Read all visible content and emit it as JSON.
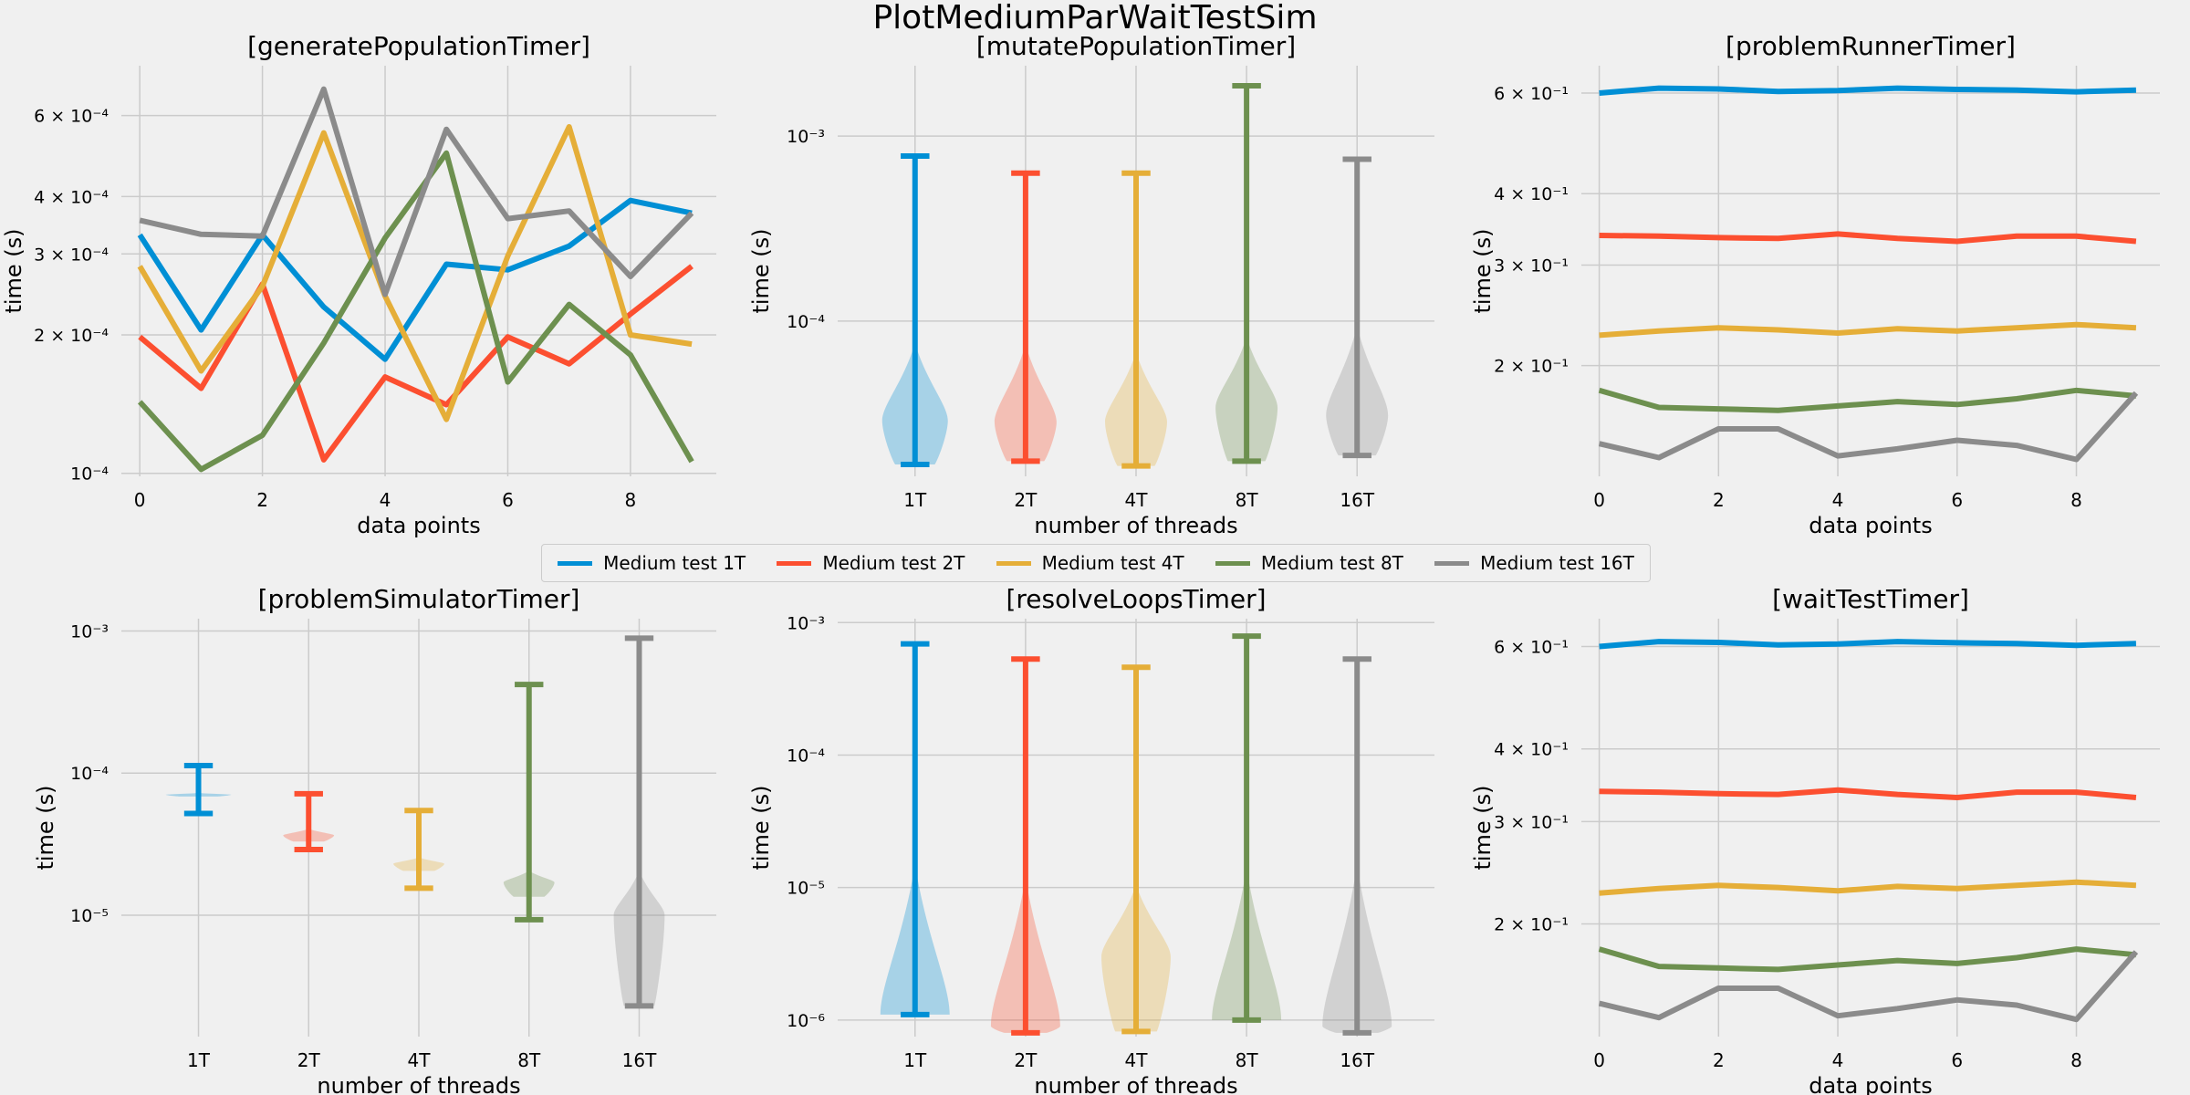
{
  "suptitle": "PlotMediumParWaitTestSim",
  "colors": [
    "#008fd5",
    "#fc4f30",
    "#e5ae38",
    "#6d904f",
    "#8b8b8b"
  ],
  "legend": [
    "Medium test 1T",
    "Medium test 2T",
    "Medium test 4T",
    "Medium test 8T",
    "Medium test 16T"
  ],
  "chart_data": [
    {
      "id": "generate",
      "type": "line",
      "title": "[generatePopulationTimer]",
      "xlabel": "data points",
      "ylabel": "time (s)",
      "yscale": "log",
      "xlim": [
        -0.3,
        9.4
      ],
      "ylim": [
        9.85e-05,
        0.00077
      ],
      "xticks": [
        0,
        2,
        4,
        6,
        8
      ],
      "xticklabels": [
        "0",
        "2",
        "4",
        "6",
        "8"
      ],
      "yticks": [
        0.0001,
        0.0002,
        0.0003,
        0.0004,
        0.0006
      ],
      "yticklabels": [
        "10⁻⁴",
        "2 × 10⁻⁴",
        "3 × 10⁻⁴",
        "4 × 10⁻⁴",
        "6 × 10⁻⁴"
      ],
      "x": [
        0,
        1,
        2,
        3,
        4,
        5,
        6,
        7,
        8,
        9
      ],
      "series": [
        {
          "name": "Medium test 1T",
          "values": [
            0.00033,
            0.000205,
            0.00033,
            0.00023,
            0.000177,
            0.000285,
            0.000277,
            0.000312,
            0.000392,
            0.000368
          ]
        },
        {
          "name": "Medium test 2T",
          "values": [
            0.000198,
            0.000153,
            0.000258,
            0.000107,
            0.000162,
            0.000141,
            0.000198,
            0.000173,
            0.000222,
            0.000282
          ]
        },
        {
          "name": "Medium test 4T",
          "values": [
            0.000282,
            0.000167,
            0.000255,
            0.00055,
            0.000243,
            0.000131,
            0.000297,
            0.000567,
            0.0002,
            0.000191
          ]
        },
        {
          "name": "Medium test 8T",
          "values": [
            0.000143,
            0.000102,
            0.000121,
            0.000192,
            0.000325,
            0.000497,
            0.000158,
            0.000233,
            0.000181,
            0.000106
          ]
        },
        {
          "name": "Medium test 16T",
          "values": [
            0.000355,
            0.000331,
            0.000328,
            0.000685,
            0.000245,
            0.00056,
            0.000358,
            0.000372,
            0.000268,
            0.000368
          ]
        }
      ]
    },
    {
      "id": "mutate",
      "type": "violin",
      "title": "[mutatePopulationTimer]",
      "xlabel": "number of threads",
      "ylabel": "time (s)",
      "yscale": "log",
      "ylim": [
        1.45e-05,
        0.0024
      ],
      "yticks": [
        0.0001,
        0.001
      ],
      "yticklabels": [
        "10⁻⁴",
        "10⁻³"
      ],
      "categories": [
        "1T",
        "2T",
        "4T",
        "8T",
        "16T"
      ],
      "violins": [
        {
          "min": 1.68e-05,
          "max": 0.00078,
          "peak": 2.9e-05,
          "width": 0.9,
          "upper": 7.6e-05,
          "lower": 1.68e-05
        },
        {
          "min": 1.75e-05,
          "max": 0.00063,
          "peak": 2.85e-05,
          "width": 0.85,
          "upper": 7.5e-05,
          "lower": 1.75e-05
        },
        {
          "min": 1.65e-05,
          "max": 0.00063,
          "peak": 2.85e-05,
          "width": 0.85,
          "upper": 6.8e-05,
          "lower": 1.65e-05
        },
        {
          "min": 1.75e-05,
          "max": 0.00187,
          "peak": 3.4e-05,
          "width": 0.85,
          "upper": 8.2e-05,
          "lower": 1.75e-05
        },
        {
          "min": 1.88e-05,
          "max": 0.00075,
          "peak": 3.1e-05,
          "width": 0.85,
          "upper": 9.4e-05,
          "lower": 1.88e-05
        }
      ]
    },
    {
      "id": "runner",
      "type": "line",
      "title": "[problemRunnerTimer]",
      "xlabel": "data points",
      "ylabel": "time (s)",
      "yscale": "log",
      "xlim": [
        -0.3,
        9.4
      ],
      "ylim": [
        0.128,
        0.67
      ],
      "xticks": [
        0,
        2,
        4,
        6,
        8
      ],
      "xticklabels": [
        "0",
        "2",
        "4",
        "6",
        "8"
      ],
      "yticks": [
        0.2,
        0.3,
        0.4,
        0.6
      ],
      "yticklabels": [
        "2 × 10⁻¹",
        "3 × 10⁻¹",
        "4 × 10⁻¹",
        "6 × 10⁻¹"
      ],
      "x": [
        0,
        1,
        2,
        3,
        4,
        5,
        6,
        7,
        8,
        9
      ],
      "series": [
        {
          "name": "Medium test 1T",
          "values": [
            0.6,
            0.612,
            0.61,
            0.604,
            0.606,
            0.612,
            0.609,
            0.607,
            0.603,
            0.607
          ]
        },
        {
          "name": "Medium test 2T",
          "values": [
            0.338,
            0.337,
            0.335,
            0.334,
            0.34,
            0.334,
            0.33,
            0.337,
            0.337,
            0.33
          ]
        },
        {
          "name": "Medium test 4T",
          "values": [
            0.226,
            0.23,
            0.233,
            0.231,
            0.228,
            0.232,
            0.23,
            0.233,
            0.236,
            0.233
          ]
        },
        {
          "name": "Medium test 8T",
          "values": [
            0.181,
            0.169,
            0.168,
            0.167,
            0.17,
            0.173,
            0.171,
            0.175,
            0.181,
            0.177
          ]
        },
        {
          "name": "Medium test 16T",
          "values": [
            0.146,
            0.138,
            0.155,
            0.155,
            0.139,
            0.143,
            0.148,
            0.145,
            0.137,
            0.179
          ]
        }
      ]
    },
    {
      "id": "simulator",
      "type": "violin",
      "title": "[problemSimulatorTimer]",
      "xlabel": "number of threads",
      "ylabel": "time (s)",
      "yscale": "log",
      "ylim": [
        1.4e-06,
        0.00122
      ],
      "yticks": [
        1e-05,
        0.0001,
        0.001
      ],
      "yticklabels": [
        "10⁻⁵",
        "10⁻⁴",
        "10⁻³"
      ],
      "categories": [
        "1T",
        "2T",
        "4T",
        "8T",
        "16T"
      ],
      "violins": [
        {
          "min": 5.2e-05,
          "max": 0.000113,
          "peak": 7.05e-05,
          "width": 0.9,
          "upper": 7.25e-05,
          "lower": 6.85e-05
        },
        {
          "min": 2.9e-05,
          "max": 7.15e-05,
          "peak": 3.65e-05,
          "width": 0.7,
          "upper": 4.05e-05,
          "lower": 3.3e-05
        },
        {
          "min": 1.55e-05,
          "max": 5.45e-05,
          "peak": 2.3e-05,
          "width": 0.7,
          "upper": 2.55e-05,
          "lower": 2.05e-05
        },
        {
          "min": 9.3e-06,
          "max": 0.00042,
          "peak": 1.7e-05,
          "width": 0.7,
          "upper": 2.05e-05,
          "lower": 1.35e-05
        },
        {
          "min": 2.3e-06,
          "max": 0.00089,
          "peak": 1e-05,
          "width": 0.7,
          "upper": 2.05e-05,
          "lower": 2.3e-06
        }
      ]
    },
    {
      "id": "resolve",
      "type": "violin",
      "title": "[resolveLoopsTimer]",
      "xlabel": "number of threads",
      "ylabel": "time (s)",
      "yscale": "log",
      "ylim": [
        7.5e-07,
        0.00107
      ],
      "yticks": [
        1e-06,
        1e-05,
        0.0001,
        0.001
      ],
      "yticklabels": [
        "10⁻⁶",
        "10⁻⁵",
        "10⁻⁴",
        "10⁻³"
      ],
      "categories": [
        "1T",
        "2T",
        "4T",
        "8T",
        "16T"
      ],
      "violins": [
        {
          "min": 1.1e-06,
          "max": 0.00069,
          "peak": 1.1e-06,
          "width": 0.95,
          "upper": 1.5e-05,
          "lower": 1.1e-06
        },
        {
          "min": 8e-07,
          "max": 0.00053,
          "peak": 9e-07,
          "width": 0.95,
          "upper": 1.2e-05,
          "lower": 8e-07
        },
        {
          "min": 8.2e-07,
          "max": 0.00046,
          "peak": 3e-06,
          "width": 0.95,
          "upper": 1.05e-05,
          "lower": 8.2e-07
        },
        {
          "min": 1e-06,
          "max": 0.00079,
          "peak": 1e-06,
          "width": 0.95,
          "upper": 1.4e-05,
          "lower": 1e-06
        },
        {
          "min": 8e-07,
          "max": 0.00053,
          "peak": 9e-07,
          "width": 0.95,
          "upper": 1.5e-05,
          "lower": 8e-07
        }
      ]
    },
    {
      "id": "wait",
      "type": "line",
      "title": "[waitTestTimer]",
      "xlabel": "data points",
      "ylabel": "time (s)",
      "yscale": "log",
      "xlim": [
        -0.3,
        9.4
      ],
      "ylim": [
        0.128,
        0.67
      ],
      "xticks": [
        0,
        2,
        4,
        6,
        8
      ],
      "xticklabels": [
        "0",
        "2",
        "4",
        "6",
        "8"
      ],
      "yticks": [
        0.2,
        0.3,
        0.4,
        0.6
      ],
      "yticklabels": [
        "2 × 10⁻¹",
        "3 × 10⁻¹",
        "4 × 10⁻¹",
        "6 × 10⁻¹"
      ],
      "x": [
        0,
        1,
        2,
        3,
        4,
        5,
        6,
        7,
        8,
        9
      ],
      "series": [
        {
          "name": "Medium test 1T",
          "values": [
            0.6,
            0.612,
            0.61,
            0.604,
            0.606,
            0.612,
            0.609,
            0.607,
            0.603,
            0.607
          ]
        },
        {
          "name": "Medium test 2T",
          "values": [
            0.338,
            0.337,
            0.335,
            0.334,
            0.34,
            0.334,
            0.33,
            0.337,
            0.337,
            0.33
          ]
        },
        {
          "name": "Medium test 4T",
          "values": [
            0.226,
            0.23,
            0.233,
            0.231,
            0.228,
            0.232,
            0.23,
            0.233,
            0.236,
            0.233
          ]
        },
        {
          "name": "Medium test 8T",
          "values": [
            0.181,
            0.169,
            0.168,
            0.167,
            0.17,
            0.173,
            0.171,
            0.175,
            0.181,
            0.177
          ]
        },
        {
          "name": "Medium test 16T",
          "values": [
            0.146,
            0.138,
            0.155,
            0.155,
            0.139,
            0.143,
            0.148,
            0.145,
            0.137,
            0.179
          ]
        }
      ]
    }
  ]
}
